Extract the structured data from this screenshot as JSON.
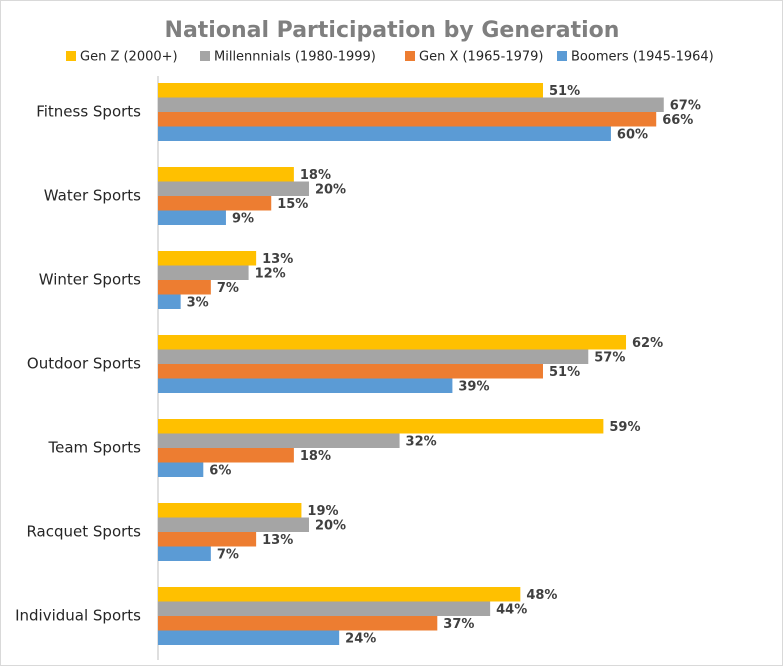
{
  "chart_data": {
    "type": "barh",
    "title": "National Participation by Generation",
    "categories": [
      "Fitness Sports",
      "Water Sports",
      "Winter Sports",
      "Outdoor Sports",
      "Team Sports",
      "Racquet Sports",
      "Individual Sports"
    ],
    "xlim": [
      0,
      82
    ],
    "legend": "top",
    "series": [
      {
        "name": "Gen Z (2000+)",
        "color": "#ffc000",
        "values": [
          51,
          18,
          13,
          62,
          59,
          19,
          48
        ],
        "value_labels": [
          "51%",
          "18%",
          "13%",
          "62%",
          "59%",
          "19%",
          "48%"
        ]
      },
      {
        "name": "Millennnials (1980-1999)",
        "color": "#a5a5a5",
        "values": [
          67,
          20,
          12,
          57,
          32,
          20,
          44
        ],
        "value_labels": [
          "67%",
          "20%",
          "12%",
          "57%",
          "32%",
          "20%",
          "44%"
        ]
      },
      {
        "name": "Gen X (1965-1979)",
        "color": "#ed7d31",
        "values": [
          66,
          15,
          7,
          51,
          18,
          13,
          37
        ],
        "value_labels": [
          "66%",
          "15%",
          "7%",
          "51%",
          "18%",
          "13%",
          "37%"
        ]
      },
      {
        "name": "Boomers (1945-1964)",
        "color": "#5b9bd5",
        "values": [
          60,
          9,
          3,
          39,
          6,
          7,
          24
        ],
        "value_labels": [
          "60%",
          "9%",
          "3%",
          "39%",
          "6%",
          "7%",
          "24%"
        ]
      }
    ]
  }
}
